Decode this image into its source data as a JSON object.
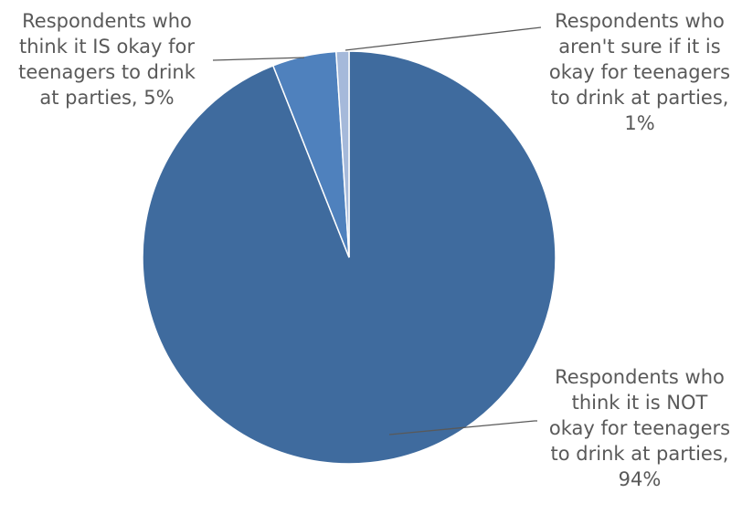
{
  "chart_data": {
    "type": "pie",
    "title": "",
    "slices": [
      {
        "label": "Respondents who think it is NOT okay for teenagers to drink at parties",
        "value": 94,
        "display": "94%",
        "color": "#3F6B9E",
        "lines": [
          "Respondents who",
          "think it is NOT",
          "okay for teenagers",
          "to drink at parties,",
          "94%"
        ]
      },
      {
        "label": "Respondents who think it IS okay for teenagers to drink at parties",
        "value": 5,
        "display": "5%",
        "color": "#4F81BD",
        "lines": [
          "Respondents who",
          "think it IS okay for",
          "teenagers to drink",
          "at parties, 5%"
        ]
      },
      {
        "label": "Respondents who aren't sure if it is okay for teenagers to drink at parties",
        "value": 1,
        "display": "1%",
        "color": "#A5B9DA",
        "lines": [
          "Respondents who",
          "aren't sure if it is",
          "okay for teenagers",
          "to drink at parties,",
          "1%"
        ]
      }
    ],
    "start_angle": "12 o'clock",
    "direction": "counterclockwise",
    "legend": "none"
  }
}
